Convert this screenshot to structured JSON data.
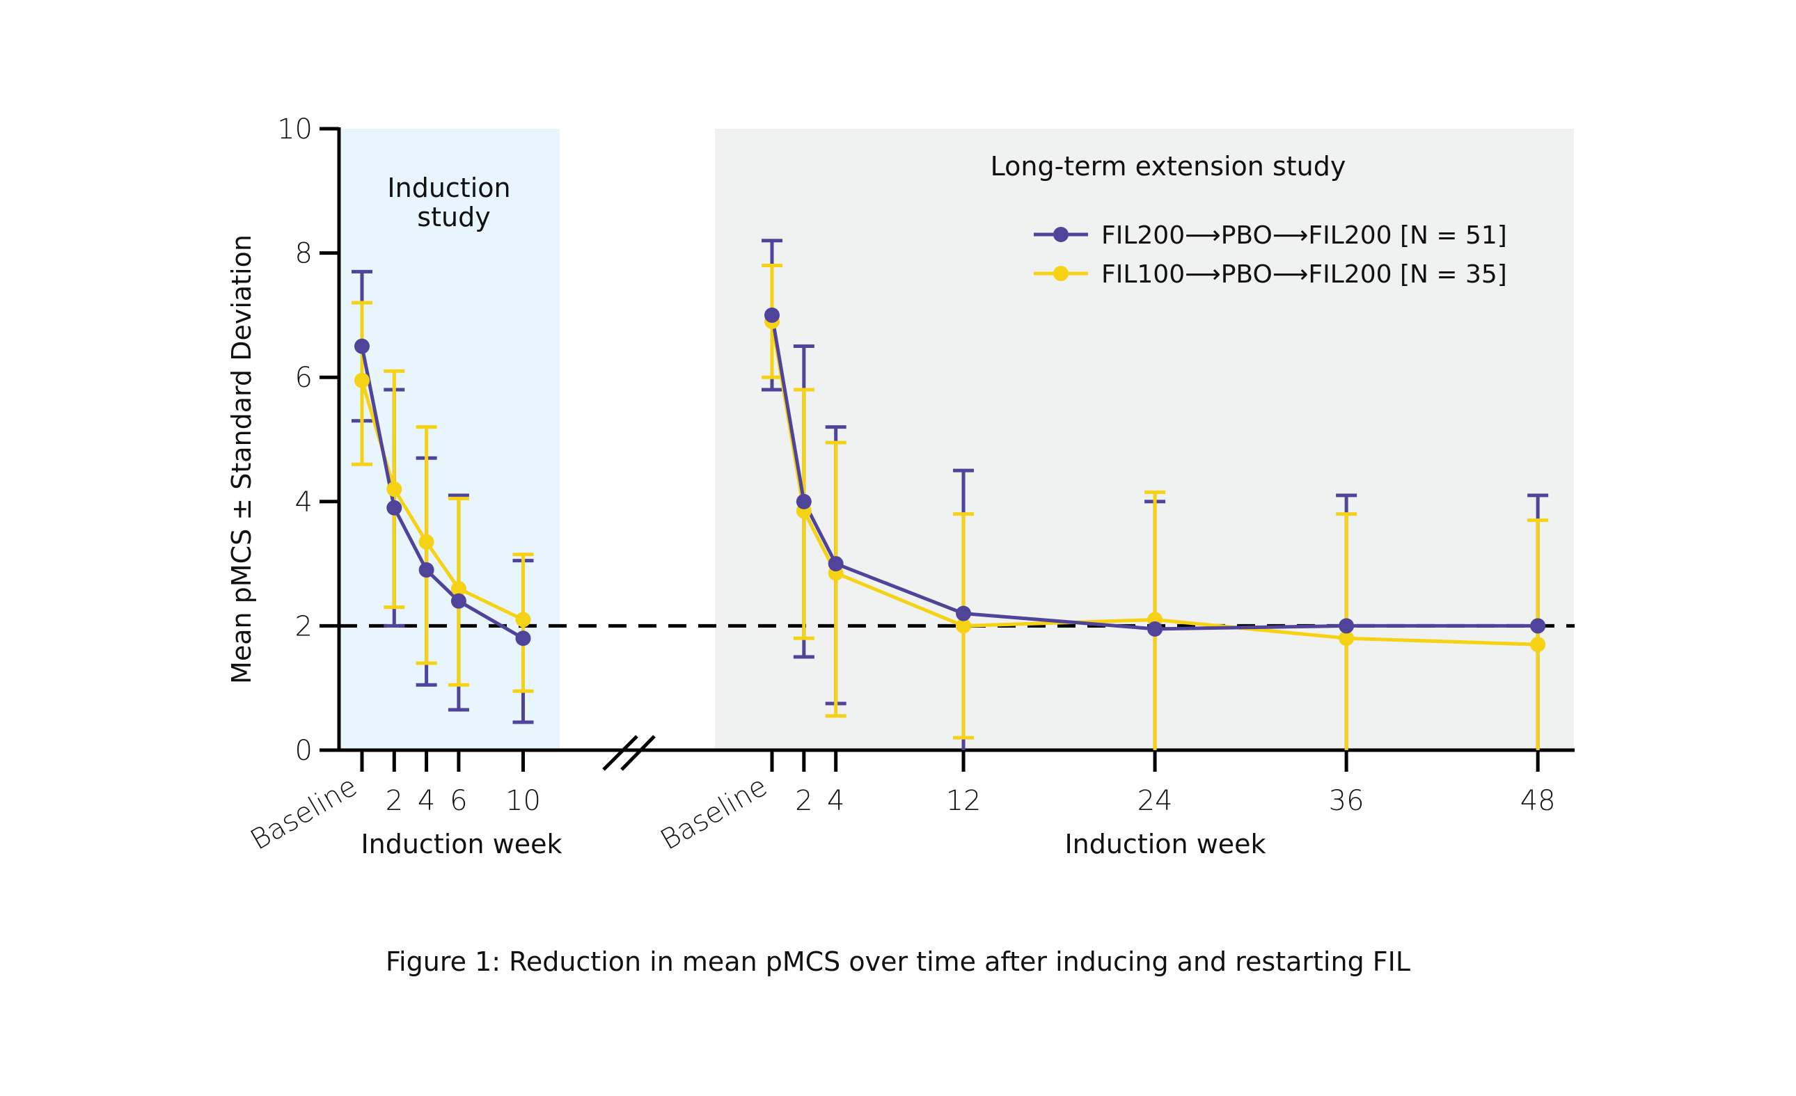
{
  "chart_data": {
    "type": "line",
    "title": "",
    "caption": "Figure 1: Reduction in mean pMCS over time after inducing and restarting FIL",
    "ylabel": "Mean pMCS ± Standard Deviation",
    "ylim": [
      0,
      10
    ],
    "yticks": [
      0,
      2,
      4,
      6,
      8,
      10
    ],
    "reference_line": {
      "y": 2,
      "style": "dashed",
      "color": "#000000"
    },
    "grid": false,
    "legend_position": "top-right (inside extension panel)",
    "colors": {
      "series_1": "#4f449a",
      "series_2": "#f5d214",
      "induction_bg": "#e8f5fd",
      "extension_bg": "#f0f1f1"
    },
    "panels": [
      {
        "name": "induction",
        "label_lines": [
          "Induction",
          "study"
        ],
        "xlabel": "Induction week",
        "x": [
          0,
          2,
          4,
          6,
          10
        ],
        "tick_labels": [
          "Baseline",
          "2",
          "4",
          "6",
          "10"
        ],
        "xlim": [
          -1.4,
          11.6
        ],
        "series": [
          {
            "name": "FIL200→PBO→FIL200 [N = 51]",
            "mean": [
              6.5,
              3.9,
              2.9,
              2.4,
              1.8
            ],
            "upper": [
              7.7,
              5.8,
              4.7,
              4.1,
              3.05
            ],
            "lower": [
              5.3,
              2.0,
              1.05,
              0.65,
              0.45
            ]
          },
          {
            "name": "FIL100→PBO→FIL200 [N = 35]",
            "mean": [
              5.95,
              4.2,
              3.35,
              2.6,
              2.1
            ],
            "upper": [
              7.2,
              6.1,
              5.2,
              4.05,
              3.15
            ],
            "lower": [
              4.6,
              2.3,
              1.4,
              1.05,
              0.95
            ]
          }
        ]
      },
      {
        "name": "extension",
        "label_lines": [
          "Long-term extension study"
        ],
        "xlabel": "Induction week",
        "x": [
          0,
          2,
          4,
          12,
          24,
          36,
          48
        ],
        "tick_labels": [
          "Baseline",
          "2",
          "4",
          "12",
          "24",
          "36",
          "48"
        ],
        "xlim": [
          -3.6,
          50.1
        ],
        "series": [
          {
            "name": "FIL200→PBO→FIL200 [N = 51]",
            "mean": [
              7.0,
              4.0,
              3.0,
              2.2,
              1.95,
              2.0,
              2.0
            ],
            "upper": [
              8.2,
              6.5,
              5.2,
              4.5,
              4.0,
              4.1,
              4.1
            ],
            "lower": [
              5.8,
              1.5,
              0.75,
              0,
              0,
              0,
              0
            ]
          },
          {
            "name": "FIL100→PBO→FIL200 [N = 35]",
            "mean": [
              6.9,
              3.85,
              2.85,
              2.0,
              2.1,
              1.8,
              1.7
            ],
            "upper": [
              7.8,
              5.8,
              4.95,
              3.8,
              4.15,
              3.8,
              3.7
            ],
            "lower": [
              6.0,
              1.8,
              0.55,
              0.2,
              0,
              0,
              0
            ]
          }
        ]
      }
    ],
    "legend": [
      {
        "label": "FIL200⟶PBO⟶FIL200 [N = 51]",
        "series": "series_1"
      },
      {
        "label": "FIL100⟶PBO⟶FIL200 [N = 35]",
        "series": "series_2"
      }
    ]
  }
}
